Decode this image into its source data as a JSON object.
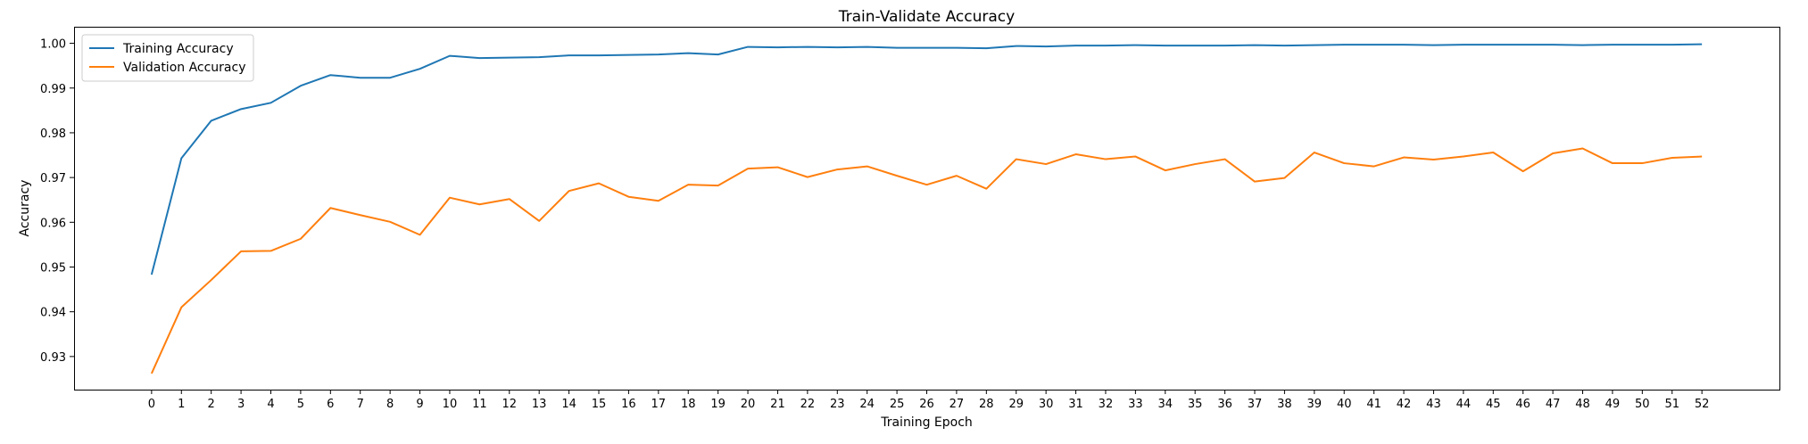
{
  "chart_data": {
    "type": "line",
    "title": "Train-Validate Accuracy",
    "xlabel": "Training Epoch",
    "ylabel": "Accuracy",
    "x": [
      0,
      1,
      2,
      3,
      4,
      5,
      6,
      7,
      8,
      9,
      10,
      11,
      12,
      13,
      14,
      15,
      16,
      17,
      18,
      19,
      20,
      21,
      22,
      23,
      24,
      25,
      26,
      27,
      28,
      29,
      30,
      31,
      32,
      33,
      34,
      35,
      36,
      37,
      38,
      39,
      40,
      41,
      42,
      43,
      44,
      45,
      46,
      47,
      48,
      49,
      50,
      51,
      52
    ],
    "xlim": [
      -2.6,
      54.6
    ],
    "ylim": [
      0.9226,
      1.0037
    ],
    "yticks": [
      0.93,
      0.94,
      0.95,
      0.96,
      0.97,
      0.98,
      0.99,
      1.0
    ],
    "ytick_labels": [
      "0.93",
      "0.94",
      "0.95",
      "0.96",
      "0.97",
      "0.98",
      "0.99",
      "1.00"
    ],
    "grid": false,
    "legend_position": "top-left",
    "series": [
      {
        "name": "Training Accuracy",
        "color": "#1f77b4",
        "values": [
          0.9483,
          0.9743,
          0.9827,
          0.9853,
          0.9867,
          0.9905,
          0.9929,
          0.9923,
          0.9923,
          0.9943,
          0.9972,
          0.9967,
          0.9968,
          0.9969,
          0.9973,
          0.9973,
          0.9974,
          0.9975,
          0.9978,
          0.9975,
          0.9992,
          0.9991,
          0.9992,
          0.9991,
          0.9992,
          0.999,
          0.999,
          0.999,
          0.9989,
          0.9994,
          0.9993,
          0.9995,
          0.9995,
          0.9996,
          0.9995,
          0.9995,
          0.9995,
          0.9996,
          0.9995,
          0.9996,
          0.9997,
          0.9997,
          0.9997,
          0.9996,
          0.9997,
          0.9997,
          0.9997,
          0.9997,
          0.9996,
          0.9997,
          0.9997,
          0.9997,
          0.9998
        ]
      },
      {
        "name": "Validation Accuracy",
        "color": "#ff7f0e",
        "values": [
          0.9262,
          0.941,
          0.9471,
          0.9535,
          0.9536,
          0.9563,
          0.9632,
          0.9616,
          0.9601,
          0.9572,
          0.9655,
          0.964,
          0.9652,
          0.9603,
          0.967,
          0.9687,
          0.9657,
          0.9648,
          0.9684,
          0.9682,
          0.972,
          0.9723,
          0.9701,
          0.9718,
          0.9725,
          0.9704,
          0.9684,
          0.9704,
          0.9675,
          0.9741,
          0.973,
          0.9752,
          0.9741,
          0.9747,
          0.9716,
          0.973,
          0.9741,
          0.9691,
          0.9699,
          0.9756,
          0.9732,
          0.9725,
          0.9745,
          0.974,
          0.9747,
          0.9756,
          0.9714,
          0.9754,
          0.9765,
          0.9732,
          0.9732,
          0.9744,
          0.9747
        ]
      }
    ]
  }
}
